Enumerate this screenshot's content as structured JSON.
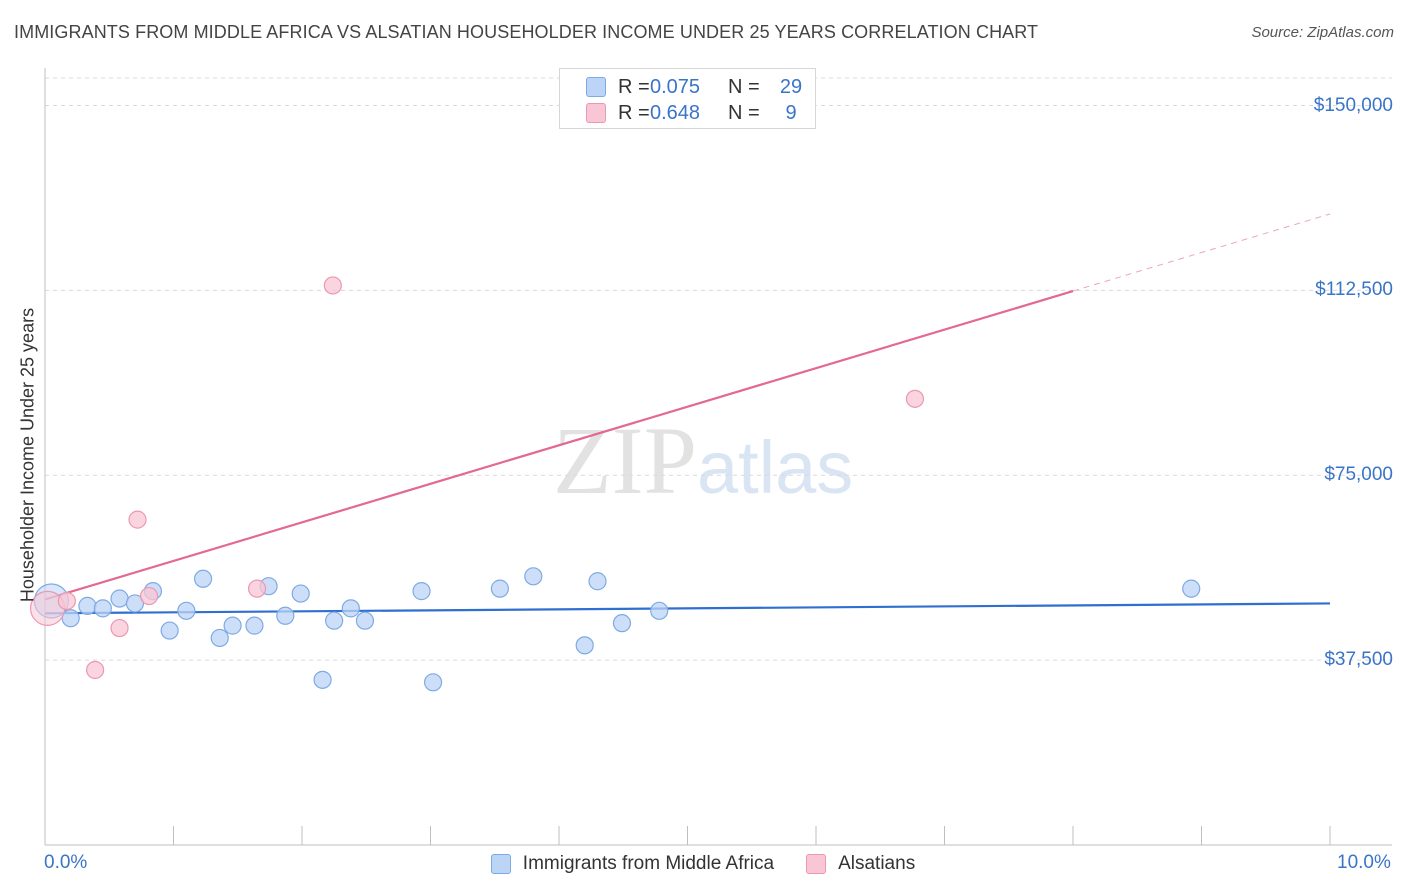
{
  "header": {
    "title": "IMMIGRANTS FROM MIDDLE AFRICA VS ALSATIAN HOUSEHOLDER INCOME UNDER 25 YEARS CORRELATION CHART",
    "source": "Source: ZipAtlas.com"
  },
  "watermark": {
    "zip": "ZIP",
    "atlas": "atlas"
  },
  "legend_top": {
    "rows": [
      {
        "r_label": "R =",
        "r_value": "0.075",
        "n_label": "N =",
        "n_value": "29"
      },
      {
        "r_label": "R =",
        "r_value": "0.648",
        "n_label": "N =",
        "n_value": "9"
      }
    ]
  },
  "legend_bottom": {
    "items": [
      {
        "label": "Immigrants from Middle Africa"
      },
      {
        "label": "Alsatians"
      }
    ]
  },
  "colors": {
    "blue_fill": "#bcd4f5",
    "blue_stroke": "#7eaae4",
    "blue_line": "#2f6fcf",
    "pink_fill": "#f8c6d4",
    "pink_stroke": "#ec98b2",
    "pink_line": "#e3698f",
    "grid": "#d9d9d9",
    "tick_text": "#3a74c8"
  },
  "chart_data": {
    "type": "scatter",
    "title": "IMMIGRANTS FROM MIDDLE AFRICA VS ALSATIAN HOUSEHOLDER INCOME UNDER 25 YEARS CORRELATION CHART",
    "xlabel": "",
    "ylabel": "Householder Income Under 25 years",
    "xlim": [
      0,
      10
    ],
    "ylim": [
      0,
      157000
    ],
    "x_tick_labels": [
      "0.0%",
      "10.0%"
    ],
    "y_ticks": [
      {
        "value": 37500,
        "label": "$37,500"
      },
      {
        "value": 75000,
        "label": "$75,000"
      },
      {
        "value": 112500,
        "label": "$112,500"
      },
      {
        "value": 150000,
        "label": "$150,000"
      }
    ],
    "series": [
      {
        "name": "Immigrants from Middle Africa",
        "color": "blue",
        "r": 0.075,
        "n": 29,
        "points": [
          {
            "x": 0.05,
            "y": 49500,
            "big": true
          },
          {
            "x": 0.2,
            "y": 46000
          },
          {
            "x": 0.33,
            "y": 48500
          },
          {
            "x": 0.45,
            "y": 48000
          },
          {
            "x": 0.58,
            "y": 50000
          },
          {
            "x": 0.7,
            "y": 49000
          },
          {
            "x": 0.84,
            "y": 51500
          },
          {
            "x": 0.97,
            "y": 43500
          },
          {
            "x": 1.1,
            "y": 47500
          },
          {
            "x": 1.23,
            "y": 54000
          },
          {
            "x": 1.36,
            "y": 42000
          },
          {
            "x": 1.46,
            "y": 44500
          },
          {
            "x": 1.63,
            "y": 44500
          },
          {
            "x": 1.74,
            "y": 52500
          },
          {
            "x": 1.87,
            "y": 46500
          },
          {
            "x": 1.99,
            "y": 51000
          },
          {
            "x": 2.16,
            "y": 33500
          },
          {
            "x": 2.25,
            "y": 45500
          },
          {
            "x": 2.38,
            "y": 48000
          },
          {
            "x": 2.49,
            "y": 45500
          },
          {
            "x": 2.93,
            "y": 51500
          },
          {
            "x": 3.02,
            "y": 33000
          },
          {
            "x": 3.54,
            "y": 52000
          },
          {
            "x": 3.8,
            "y": 54500
          },
          {
            "x": 4.2,
            "y": 40500
          },
          {
            "x": 4.3,
            "y": 53500
          },
          {
            "x": 4.49,
            "y": 45000
          },
          {
            "x": 4.78,
            "y": 47500
          },
          {
            "x": 8.92,
            "y": 52000
          }
        ],
        "trend": {
          "x0": 0.0,
          "y0": 47000,
          "x1": 10.0,
          "y1": 49000,
          "dashed_from": 10.0
        }
      },
      {
        "name": "Alsatians",
        "color": "pink",
        "r": 0.648,
        "n": 9,
        "points": [
          {
            "x": 0.02,
            "y": 48000,
            "big": true
          },
          {
            "x": 0.17,
            "y": 49500
          },
          {
            "x": 0.39,
            "y": 35500
          },
          {
            "x": 0.58,
            "y": 44000
          },
          {
            "x": 0.72,
            "y": 66000
          },
          {
            "x": 0.81,
            "y": 50500
          },
          {
            "x": 1.65,
            "y": 52000
          },
          {
            "x": 2.24,
            "y": 113500
          },
          {
            "x": 6.77,
            "y": 90500
          }
        ],
        "trend": {
          "x0": 0.0,
          "y0": 49800,
          "x1": 10.0,
          "y1": 128000,
          "dashed_from": 8.0
        }
      }
    ]
  }
}
